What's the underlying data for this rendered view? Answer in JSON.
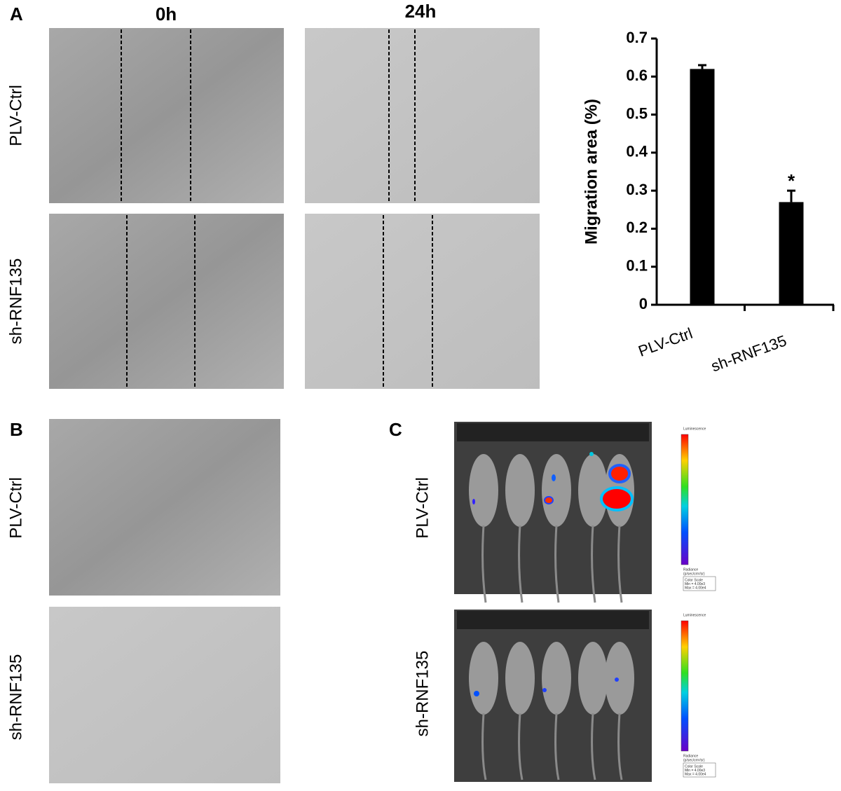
{
  "panel_a": {
    "label": "A",
    "columns": [
      "0h",
      "24h"
    ],
    "rows": [
      "PLV-Ctrl",
      "sh-RNF135"
    ]
  },
  "chart_data": {
    "type": "bar",
    "ylabel": "Migration area (%)",
    "categories": [
      "PLV-Ctrl",
      "sh-RNF135"
    ],
    "values": [
      0.62,
      0.27
    ],
    "errors": [
      0.01,
      0.03
    ],
    "color": "#000000",
    "annotation": "*",
    "ylim": [
      0,
      0.7
    ],
    "yticks": [
      0,
      0.1,
      0.2,
      0.3,
      0.4,
      0.5,
      0.6,
      0.7
    ]
  },
  "panel_b": {
    "label": "B",
    "rows": [
      "PLV-Ctrl",
      "sh-RNF135"
    ]
  },
  "panel_c": {
    "label": "C",
    "rows": [
      "PLV-Ctrl",
      "sh-RNF135"
    ],
    "scale": {
      "title": "Luminescence",
      "unit": "Radiance",
      "unit_detail": "(p/sec/cm²/sr)",
      "box": [
        "Color Scale",
        "Min = 4.00e3",
        "Max = 4.00e4"
      ]
    }
  }
}
